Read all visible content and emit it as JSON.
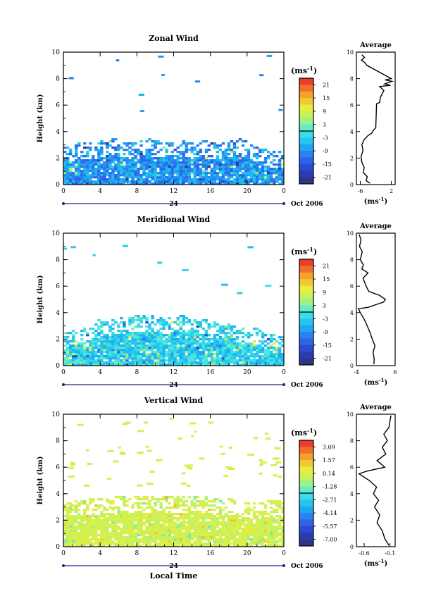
{
  "chart_data": [
    {
      "type": "heatmap",
      "title": "Zonal Wind",
      "ylabel": "Height (km)",
      "unit_label": "(ms",
      "unit_exp": "-1",
      "x_ticks": [
        "0",
        "4",
        "8",
        "12",
        "16",
        "20",
        "0"
      ],
      "y_ticks": [
        "0",
        "2",
        "4",
        "6",
        "8",
        "10"
      ],
      "ylim": [
        0,
        10
      ],
      "xlim": [
        0,
        24
      ],
      "day_marker": "24",
      "date_label": "Oct 2006",
      "colorbar_ticks": [
        "21",
        "15",
        "9",
        "3",
        "-3",
        "-9",
        "-15",
        "-21"
      ],
      "colorbar_range": [
        -24,
        24
      ],
      "field": {
        "base_level": -9,
        "variation": 5,
        "top_km_profile": [
          3.0,
          3.2,
          3.3,
          3.2,
          3.4,
          3.6,
          3.5,
          3.3,
          3.4,
          3.6,
          3.4,
          3.3,
          3.2,
          3.4,
          3.3,
          3.5,
          3.2,
          3.3,
          3.4,
          3.6,
          3.3,
          3.0,
          2.7,
          2.6,
          2.5
        ]
      },
      "average": {
        "title": "Average",
        "xlabel": "(ms",
        "xlabel_exp": "-1",
        "x_ticks": [
          "-6",
          "2"
        ],
        "xlim": [
          -7,
          3
        ],
        "ylim": [
          0,
          10
        ],
        "y_ticks": [
          "0",
          "2",
          "4",
          "6",
          "8",
          "10"
        ],
        "profile": [
          [
            -3.5,
            0.1
          ],
          [
            -4.5,
            0.3
          ],
          [
            -4.2,
            0.6
          ],
          [
            -5.2,
            0.9
          ],
          [
            -5.0,
            1.3
          ],
          [
            -5.6,
            1.7
          ],
          [
            -5.8,
            2.1
          ],
          [
            -5.3,
            2.6
          ],
          [
            -5.6,
            3.0
          ],
          [
            -5.0,
            3.4
          ],
          [
            -4.0,
            3.7
          ],
          [
            -3.0,
            3.9
          ],
          [
            -2.6,
            4.1
          ],
          [
            -2.0,
            4.3
          ],
          [
            -1.8,
            6.1
          ],
          [
            -1.0,
            6.2
          ],
          [
            -0.8,
            6.6
          ],
          [
            0.1,
            7.1
          ],
          [
            -1.0,
            7.4
          ],
          [
            1.8,
            7.5
          ],
          [
            0.3,
            7.6
          ],
          [
            2.2,
            7.8
          ],
          [
            0.4,
            7.9
          ],
          [
            2.0,
            8.0
          ],
          [
            -4.3,
            9.0
          ],
          [
            -4.8,
            9.2
          ],
          [
            -5.7,
            9.4
          ],
          [
            -4.9,
            9.6
          ],
          [
            -5.6,
            9.8
          ]
        ]
      }
    },
    {
      "type": "heatmap",
      "title": "Meridional Wind",
      "ylabel": "Height (km)",
      "unit_label": "(ms",
      "unit_exp": "-1",
      "x_ticks": [
        "0",
        "4",
        "8",
        "12",
        "16",
        "20",
        "0"
      ],
      "y_ticks": [
        "0",
        "2",
        "4",
        "6",
        "8",
        "10"
      ],
      "ylim": [
        0,
        10
      ],
      "xlim": [
        0,
        24
      ],
      "day_marker": "24",
      "date_label": "Oct 2006",
      "colorbar_ticks": [
        "21",
        "15",
        "9",
        "3",
        "-3",
        "-9",
        "-15",
        "-21"
      ],
      "colorbar_range": [
        -24,
        24
      ],
      "field": {
        "base_level": -3,
        "variation": 5,
        "top_km_profile": [
          2.6,
          2.8,
          3.0,
          3.4,
          3.6,
          3.5,
          3.7,
          3.8,
          3.9,
          3.8,
          3.9,
          3.7,
          3.8,
          4.0,
          3.8,
          3.6,
          3.4,
          3.3,
          3.2,
          3.0,
          3.1,
          2.9,
          2.6,
          2.4,
          2.2
        ]
      },
      "average": {
        "title": "Average",
        "xlabel": "(ms",
        "xlabel_exp": "-1",
        "x_ticks": [
          "-4",
          "6"
        ],
        "xlim": [
          -4,
          6
        ],
        "ylim": [
          0,
          10
        ],
        "y_ticks": [
          "0",
          "2",
          "4",
          "6",
          "8",
          "10"
        ],
        "profile": [
          [
            0.5,
            0.1
          ],
          [
            0.6,
            0.5
          ],
          [
            0.3,
            1.0
          ],
          [
            0.8,
            1.5
          ],
          [
            0.1,
            2.0
          ],
          [
            -0.5,
            2.5
          ],
          [
            -1.2,
            3.0
          ],
          [
            -2.0,
            3.5
          ],
          [
            -3.0,
            4.0
          ],
          [
            -3.5,
            4.3
          ],
          [
            -1.0,
            4.4
          ],
          [
            1.0,
            4.6
          ],
          [
            3.0,
            4.8
          ],
          [
            3.5,
            5.0
          ],
          [
            2.0,
            5.3
          ],
          [
            -0.8,
            5.6
          ],
          [
            -1.5,
            6.0
          ],
          [
            -2.3,
            6.6
          ],
          [
            -1.0,
            7.0
          ],
          [
            -2.6,
            7.3
          ],
          [
            -2.2,
            7.6
          ],
          [
            -3.0,
            8.0
          ],
          [
            -2.5,
            8.6
          ],
          [
            -3.2,
            9.0
          ],
          [
            -2.8,
            9.5
          ],
          [
            -3.3,
            9.9
          ]
        ]
      }
    },
    {
      "type": "heatmap",
      "title": "Vertical Wind",
      "ylabel": "Height (km)",
      "unit_label": "(ms",
      "unit_exp": "-1",
      "x_ticks": [
        "0",
        "4",
        "8",
        "12",
        "16",
        "20",
        "0"
      ],
      "y_ticks": [
        "0",
        "2",
        "4",
        "6",
        "8",
        "10"
      ],
      "ylim": [
        0,
        10
      ],
      "xlim": [
        0,
        24
      ],
      "day_marker": "24",
      "date_label": "Oct 2006",
      "xlabel": "Local Time",
      "colorbar_ticks": [
        "3.09",
        "1.57",
        "0.14",
        "-1.28",
        "-2.71",
        "-4.14",
        "-5.57",
        "-7.00"
      ],
      "colorbar_range": [
        -8.42,
        4.51
      ],
      "field": {
        "base_level": 0.3,
        "variation": 0.6,
        "top_km_profile": [
          3.4,
          3.5,
          3.6,
          3.7,
          3.8,
          3.8,
          3.9,
          3.9,
          4.0,
          3.9,
          4.0,
          3.9,
          3.8,
          3.9,
          4.0,
          3.9,
          3.8,
          3.7,
          3.8,
          3.6,
          3.5,
          3.4,
          3.5,
          3.6,
          3.6
        ]
      },
      "average": {
        "title": "Average",
        "xlabel": "(ms",
        "xlabel_exp": "-1",
        "x_ticks": [
          "-0.6",
          "-0.1"
        ],
        "xlim": [
          -0.75,
          0.0
        ],
        "ylim": [
          0,
          10
        ],
        "y_ticks": [
          "0",
          "2",
          "4",
          "6",
          "8",
          "10"
        ],
        "profile": [
          [
            -0.12,
            0.1
          ],
          [
            -0.2,
            0.6
          ],
          [
            -0.25,
            1.2
          ],
          [
            -0.35,
            1.8
          ],
          [
            -0.3,
            2.4
          ],
          [
            -0.4,
            3.0
          ],
          [
            -0.32,
            3.5
          ],
          [
            -0.42,
            4.0
          ],
          [
            -0.36,
            4.5
          ],
          [
            -0.5,
            5.0
          ],
          [
            -0.7,
            5.5
          ],
          [
            -0.55,
            5.7
          ],
          [
            -0.2,
            6.0
          ],
          [
            -0.35,
            6.5
          ],
          [
            -0.18,
            7.0
          ],
          [
            -0.25,
            7.5
          ],
          [
            -0.15,
            8.0
          ],
          [
            -0.22,
            8.5
          ],
          [
            -0.12,
            9.0
          ],
          [
            -0.1,
            9.5
          ],
          [
            -0.08,
            9.9
          ]
        ]
      }
    }
  ]
}
